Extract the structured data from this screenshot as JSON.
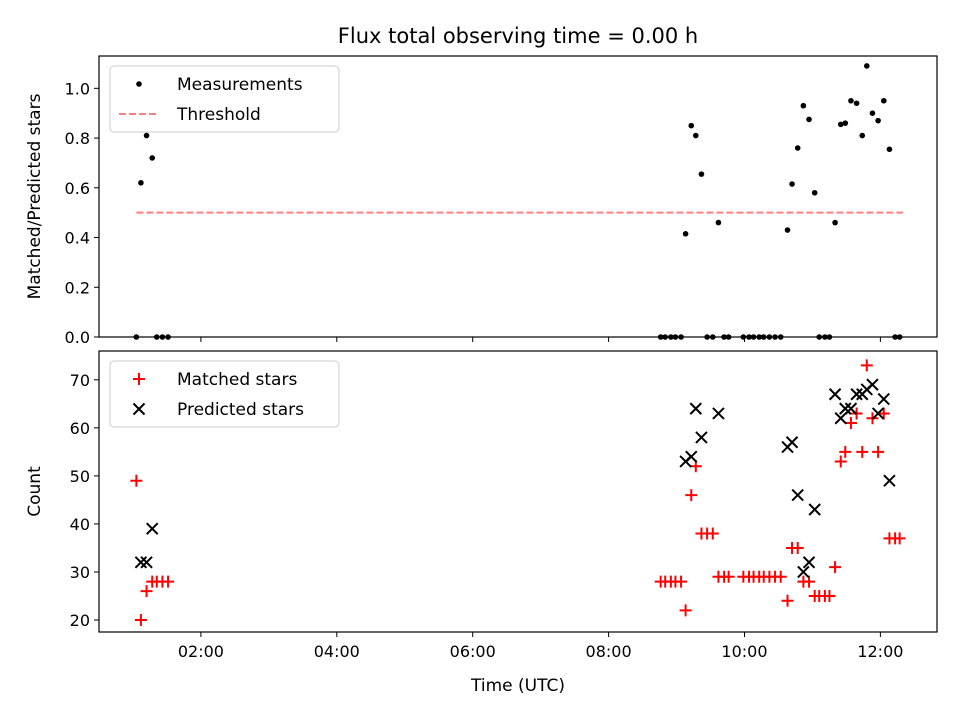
{
  "figure": {
    "title": "Flux total observing time = 0.00 h"
  },
  "chart_data": [
    {
      "type": "scatter",
      "ylabel": "Matched/Predicted stars",
      "xlabel": "",
      "ylim": [
        0.0,
        1.13
      ],
      "yticks": [
        0.0,
        0.2,
        0.4,
        0.6,
        0.8,
        1.0
      ],
      "ytick_labels": [
        "0.0",
        "0.2",
        "0.4",
        "0.6",
        "0.8",
        "1.0"
      ],
      "legend_position": "top-left",
      "grid": false,
      "series": [
        {
          "name": "Measurements",
          "marker": "dot",
          "color": "#000000",
          "points": [
            [
              "01:03",
              0.0
            ],
            [
              "01:07",
              0.62
            ],
            [
              "01:12",
              0.81
            ],
            [
              "01:17",
              0.72
            ],
            [
              "01:21",
              0.0
            ],
            [
              "01:26",
              0.0
            ],
            [
              "01:31",
              0.0
            ],
            [
              "08:46",
              0.0
            ],
            [
              "08:50",
              0.0
            ],
            [
              "08:55",
              0.0
            ],
            [
              "08:59",
              0.0
            ],
            [
              "09:04",
              0.0
            ],
            [
              "09:08",
              0.415
            ],
            [
              "09:13",
              0.85
            ],
            [
              "09:17",
              0.81
            ],
            [
              "09:22",
              0.655
            ],
            [
              "09:27",
              0.0
            ],
            [
              "09:32",
              0.0
            ],
            [
              "09:37",
              0.46
            ],
            [
              "09:42",
              0.0
            ],
            [
              "09:46",
              0.0
            ],
            [
              "09:59",
              0.0
            ],
            [
              "10:04",
              0.0
            ],
            [
              "10:08",
              0.0
            ],
            [
              "10:13",
              0.0
            ],
            [
              "10:17",
              0.0
            ],
            [
              "10:22",
              0.0
            ],
            [
              "10:27",
              0.0
            ],
            [
              "10:32",
              0.0
            ],
            [
              "10:38",
              0.43
            ],
            [
              "10:42",
              0.615
            ],
            [
              "10:47",
              0.76
            ],
            [
              "10:52",
              0.93
            ],
            [
              "10:57",
              0.875
            ],
            [
              "11:02",
              0.58
            ],
            [
              "11:06",
              0.0
            ],
            [
              "11:11",
              0.0
            ],
            [
              "11:15",
              0.0
            ],
            [
              "11:20",
              0.46
            ],
            [
              "11:25",
              0.855
            ],
            [
              "11:29",
              0.86
            ],
            [
              "11:34",
              0.95
            ],
            [
              "11:39",
              0.94
            ],
            [
              "11:44",
              0.81
            ],
            [
              "11:48",
              1.09
            ],
            [
              "11:53",
              0.9
            ],
            [
              "11:58",
              0.87
            ],
            [
              "12:03",
              0.95
            ],
            [
              "12:08",
              0.755
            ],
            [
              "12:13",
              0.0
            ],
            [
              "12:17",
              0.0
            ]
          ]
        },
        {
          "name": "Threshold",
          "style": "dashed",
          "color": "#ff7f7f",
          "points": [
            [
              "01:03",
              0.5
            ],
            [
              "12:20",
              0.5
            ]
          ]
        }
      ]
    },
    {
      "type": "scatter",
      "ylabel": "Count",
      "xlabel": "Time (UTC)",
      "ylim": [
        17.5,
        76.0
      ],
      "yticks": [
        20,
        30,
        40,
        50,
        60,
        70
      ],
      "ytick_labels": [
        "20",
        "30",
        "40",
        "50",
        "60",
        "70"
      ],
      "xlim": [
        "00:30",
        "12:50"
      ],
      "xticks": [
        "02:00",
        "04:00",
        "06:00",
        "08:00",
        "10:00",
        "12:00"
      ],
      "legend_position": "top-left",
      "grid": false,
      "series": [
        {
          "name": "Matched stars",
          "marker": "plus",
          "color": "#ff0000",
          "points": [
            [
              "01:03",
              49
            ],
            [
              "01:07",
              20
            ],
            [
              "01:12",
              26
            ],
            [
              "01:17",
              28
            ],
            [
              "01:21",
              28
            ],
            [
              "01:26",
              28
            ],
            [
              "01:31",
              28
            ],
            [
              "08:46",
              28
            ],
            [
              "08:50",
              28
            ],
            [
              "08:55",
              28
            ],
            [
              "08:59",
              28
            ],
            [
              "09:04",
              28
            ],
            [
              "09:08",
              22
            ],
            [
              "09:13",
              46
            ],
            [
              "09:17",
              52
            ],
            [
              "09:22",
              38
            ],
            [
              "09:27",
              38
            ],
            [
              "09:32",
              38
            ],
            [
              "09:37",
              29
            ],
            [
              "09:42",
              29
            ],
            [
              "09:46",
              29
            ],
            [
              "09:59",
              29
            ],
            [
              "10:04",
              29
            ],
            [
              "10:08",
              29
            ],
            [
              "10:13",
              29
            ],
            [
              "10:17",
              29
            ],
            [
              "10:22",
              29
            ],
            [
              "10:27",
              29
            ],
            [
              "10:32",
              29
            ],
            [
              "10:38",
              24
            ],
            [
              "10:42",
              35
            ],
            [
              "10:47",
              35
            ],
            [
              "10:52",
              28
            ],
            [
              "10:57",
              28
            ],
            [
              "11:02",
              25
            ],
            [
              "11:06",
              25
            ],
            [
              "11:11",
              25
            ],
            [
              "11:15",
              25
            ],
            [
              "11:20",
              31
            ],
            [
              "11:25",
              53
            ],
            [
              "11:29",
              55
            ],
            [
              "11:34",
              61
            ],
            [
              "11:39",
              63
            ],
            [
              "11:44",
              55
            ],
            [
              "11:48",
              73
            ],
            [
              "11:53",
              62
            ],
            [
              "11:58",
              55
            ],
            [
              "12:03",
              63
            ],
            [
              "12:08",
              37
            ],
            [
              "12:13",
              37
            ],
            [
              "12:17",
              37
            ]
          ]
        },
        {
          "name": "Predicted stars",
          "marker": "x",
          "color": "#000000",
          "points": [
            [
              "01:07",
              32
            ],
            [
              "01:12",
              32
            ],
            [
              "01:17",
              39
            ],
            [
              "09:08",
              53
            ],
            [
              "09:13",
              54
            ],
            [
              "09:17",
              64
            ],
            [
              "09:22",
              58
            ],
            [
              "09:37",
              63
            ],
            [
              "10:38",
              56
            ],
            [
              "10:42",
              57
            ],
            [
              "10:47",
              46
            ],
            [
              "10:52",
              30
            ],
            [
              "10:57",
              32
            ],
            [
              "11:02",
              43
            ],
            [
              "11:20",
              67
            ],
            [
              "11:25",
              62
            ],
            [
              "11:29",
              64
            ],
            [
              "11:34",
              64
            ],
            [
              "11:39",
              67
            ],
            [
              "11:44",
              67
            ],
            [
              "11:48",
              68
            ],
            [
              "11:53",
              69
            ],
            [
              "11:58",
              63
            ],
            [
              "12:03",
              66
            ],
            [
              "12:08",
              49
            ]
          ]
        }
      ]
    }
  ]
}
